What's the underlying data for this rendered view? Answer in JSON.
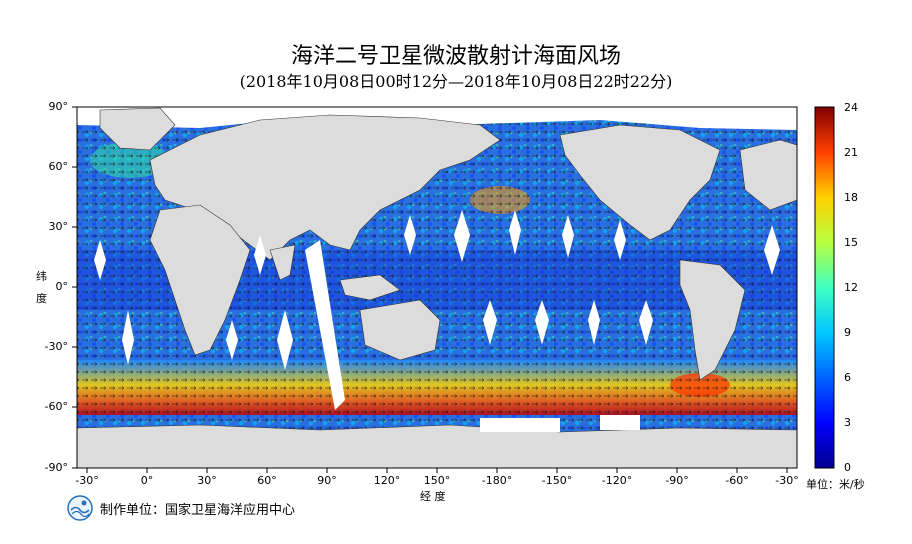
{
  "title": "海洋二号卫星微波散射计海面风场",
  "subtitle": "(2018年10月08日00时12分—2018年10月08日22时22分)",
  "axes": {
    "y_label_line1": "纬",
    "y_label_line2": "度",
    "x_label": "经  度",
    "lat_ticks": [
      "90°",
      "60°",
      "30°",
      "0°",
      "-30°",
      "-60°",
      "-90°"
    ],
    "lon_ticks": [
      "-30°",
      "0°",
      "30°",
      "60°",
      "90°",
      "120°",
      "150°",
      "-180°",
      "-150°",
      "-120°",
      "-90°",
      "-60°",
      "-30°"
    ]
  },
  "colorbar": {
    "ticks": [
      "24",
      "21",
      "18",
      "15",
      "12",
      "9",
      "6",
      "3",
      "0"
    ],
    "unit": "单位：米/秒",
    "range": [
      0,
      24
    ],
    "colors": [
      "#00008f",
      "#0000ff",
      "#0080ff",
      "#00ffff",
      "#80ff80",
      "#ffff00",
      "#ff8000",
      "#ff0000",
      "#800000"
    ]
  },
  "producer": "制作单位：国家卫星海洋应用中心",
  "colors": {
    "land": "#dcdcdc",
    "ocean_base": "#2a6fe0",
    "swath_gap": "#ffffff"
  }
}
